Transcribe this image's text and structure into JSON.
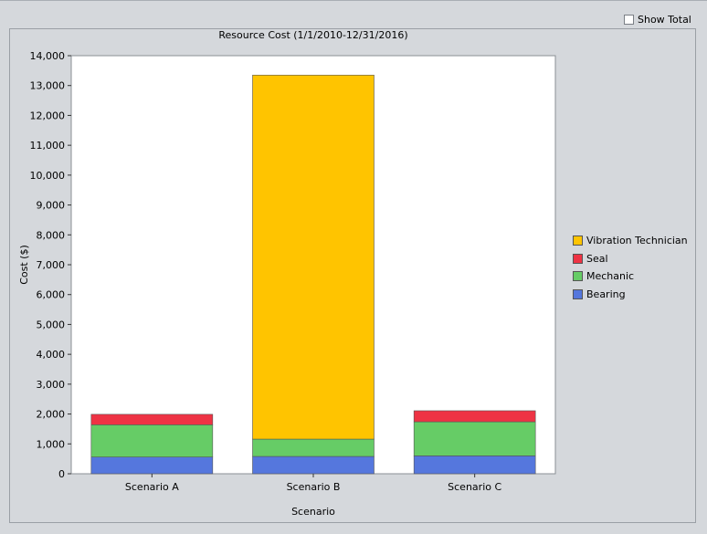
{
  "controls": {
    "show_total_label": "Show Total",
    "show_total_checked": false
  },
  "chart_data": {
    "type": "bar",
    "stacked": true,
    "title": "Resource Cost (1/1/2010-12/31/2016)",
    "xlabel": "Scenario",
    "ylabel": "Cost ($)",
    "ylim": [
      0,
      14000
    ],
    "yticks": [
      0,
      1000,
      2000,
      3000,
      4000,
      5000,
      6000,
      7000,
      8000,
      9000,
      10000,
      11000,
      12000,
      13000,
      14000
    ],
    "ytick_labels": [
      "0",
      "1,000",
      "2,000",
      "3,000",
      "4,000",
      "5,000",
      "6,000",
      "7,000",
      "8,000",
      "9,000",
      "10,000",
      "11,000",
      "12,000",
      "13,000",
      "14,000"
    ],
    "categories": [
      "Scenario A",
      "Scenario B",
      "Scenario C"
    ],
    "series": [
      {
        "name": "Bearing",
        "color": "#5577dd",
        "values": [
          560,
          580,
          600
        ]
      },
      {
        "name": "Mechanic",
        "color": "#66cc66",
        "values": [
          1080,
          580,
          1140
        ]
      },
      {
        "name": "Seal",
        "color": "#ee3344",
        "values": [
          350,
          0,
          370
        ]
      },
      {
        "name": "Vibration Technician",
        "color": "#ffc400",
        "values": [
          0,
          12190,
          0
        ]
      }
    ],
    "legend_order": [
      "Vibration Technician",
      "Seal",
      "Mechanic",
      "Bearing"
    ],
    "legend_position": "right",
    "grid": false
  }
}
